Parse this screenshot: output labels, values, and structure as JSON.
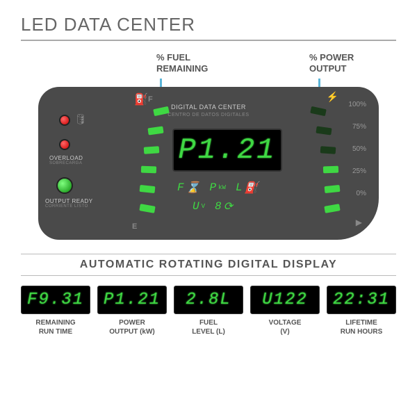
{
  "header": {
    "title": "LED DATA CENTER"
  },
  "callouts": {
    "fuel": {
      "line1": "% FUEL",
      "line2": "REMAINING"
    },
    "power": {
      "line1": "% POWER",
      "line2": "OUTPUT"
    }
  },
  "panel": {
    "title": "DIGITAL DATA CENTER",
    "subtitle": "CENTRO DE DATOS DIGITALES",
    "display_value": "P1.21",
    "fuel_full": "F",
    "fuel_empty": "E",
    "pct_labels": [
      "100%",
      "75%",
      "50%",
      "25%",
      "0%"
    ],
    "gauge_colors": {
      "lit": "#3fd843",
      "dim": "#1a3a1a"
    },
    "fuel_segments_lit": 6,
    "power_segments_lit": 3,
    "segments_total": 6,
    "indicators": {
      "overload": {
        "label": "OVERLOAD",
        "sub": "SOBRECARGA",
        "color": "#cc0000"
      },
      "ready": {
        "label": "OUTPUT READY",
        "sub": "CORRIENTE LISTO",
        "color": "#0a8a0a"
      },
      "oil": {
        "color": "#cc0000"
      }
    },
    "modes": {
      "row1": [
        {
          "sym": "F",
          "icon": "⌛"
        },
        {
          "sym": "P",
          "unit": "kW"
        },
        {
          "sym": "L",
          "icon": "⛽"
        }
      ],
      "row2": [
        {
          "sym": "U",
          "unit": "V"
        },
        {
          "sym": "8",
          "icon": "⟳"
        }
      ]
    }
  },
  "section_title": "AUTOMATIC ROTATING DIGITAL DISPLAY",
  "displays": [
    {
      "value": "F9.31",
      "label1": "REMAINING",
      "label2": "RUN TIME"
    },
    {
      "value": "P1.21",
      "label1": "POWER",
      "label2": "OUTPUT (kW)"
    },
    {
      "value": "2.8L",
      "label1": "FUEL",
      "label2": "LEVEL (L)"
    },
    {
      "value": "U122",
      "label1": "VOLTAGE",
      "label2": "(V)"
    },
    {
      "value": "22:31",
      "label1": "LIFETIME",
      "label2": "RUN HOURS"
    }
  ],
  "colors": {
    "led_green": "#3fd843",
    "panel_bg": "#4a4a4a",
    "pointer": "#5bb5d8"
  }
}
